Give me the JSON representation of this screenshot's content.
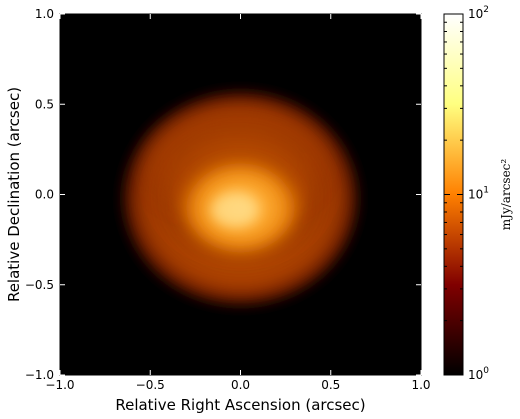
{
  "chart_data": {
    "type": "heatmap",
    "title": "",
    "xlabel": "Relative Right Ascension (arcsec)",
    "ylabel": "Relative Declination (arcsec)",
    "xlim": [
      -1.0,
      1.0
    ],
    "ylim": [
      -1.0,
      1.0
    ],
    "x_ticks": [
      -1.0,
      -0.5,
      0.0,
      0.5,
      1.0
    ],
    "x_tick_labels": [
      "−1.0",
      "−0.5",
      "0.0",
      "0.5",
      "1.0"
    ],
    "y_ticks": [
      1.0,
      0.5,
      0.0,
      -0.5,
      -1.0
    ],
    "y_tick_labels": [
      "1.0",
      "0.5",
      "0.0",
      "−0.5",
      "−1.0"
    ],
    "grid": false,
    "image": {
      "description_source": "disk emission map",
      "center": [
        0.0,
        0.0
      ],
      "peak_position": [
        0.0,
        -0.03
      ],
      "outer_radius_x": 0.65,
      "outer_radius_y": 0.58,
      "peak_value": 30,
      "background_value": 1
    },
    "colorbar": {
      "label": "mJy/arcsec²",
      "scale": "log",
      "range": [
        1,
        100
      ],
      "ticks": [
        1,
        10,
        100
      ],
      "tick_bases": [
        "10",
        "10",
        "10"
      ],
      "tick_exponents": [
        "0",
        "1",
        "2"
      ],
      "minor_ticks": [
        2,
        3,
        4,
        5,
        6,
        7,
        8,
        9,
        20,
        30,
        40,
        50,
        60,
        70,
        80,
        90
      ],
      "colormap": "afmhot",
      "colors": [
        "#000000",
        "#800000",
        "#ff8000",
        "#ffff80",
        "#ffffff"
      ]
    }
  }
}
